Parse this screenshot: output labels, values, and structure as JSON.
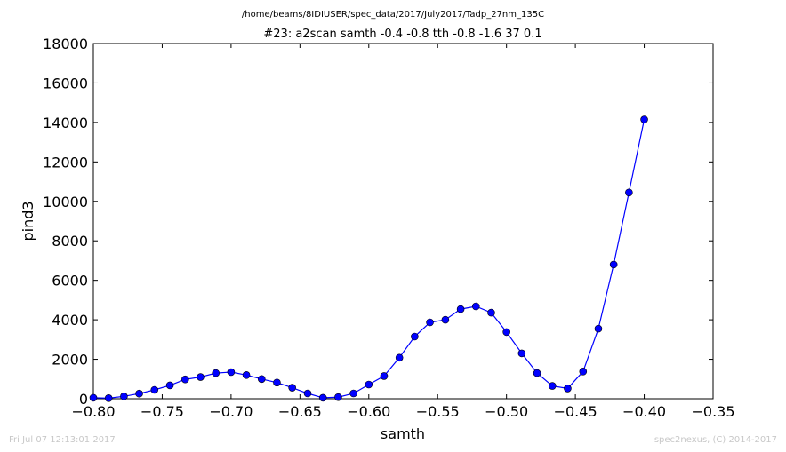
{
  "chart_data": {
    "type": "line",
    "suptitle": "/home/beams/8IDIUSER/spec_data/2017/July2017/Tadp_27nm_135C",
    "title": "#23: a2scan  samth -0.4 -0.8  tth -0.8 -1.6  37 0.1",
    "xlabel": "samth",
    "ylabel": "pind3",
    "xlim": [
      -0.8,
      -0.35
    ],
    "ylim": [
      0,
      18000
    ],
    "xticks": [
      -0.8,
      -0.75,
      -0.7,
      -0.65,
      -0.6,
      -0.55,
      -0.5,
      -0.45,
      -0.4,
      -0.35
    ],
    "xtick_labels": [
      "−0.80",
      "−0.75",
      "−0.70",
      "−0.65",
      "−0.60",
      "−0.55",
      "−0.50",
      "−0.45",
      "−0.40",
      "−0.35"
    ],
    "yticks": [
      0,
      2000,
      4000,
      6000,
      8000,
      10000,
      12000,
      14000,
      16000,
      18000
    ],
    "ytick_labels": [
      "0",
      "2000",
      "4000",
      "6000",
      "8000",
      "10000",
      "12000",
      "14000",
      "16000",
      "18000"
    ],
    "grid": false,
    "series": [
      {
        "color": "#0000ff",
        "marker": "circle",
        "x": [
          -0.8,
          -0.7889,
          -0.7778,
          -0.7667,
          -0.7556,
          -0.7444,
          -0.7333,
          -0.7222,
          -0.7111,
          -0.7,
          -0.6889,
          -0.6778,
          -0.6667,
          -0.6556,
          -0.6444,
          -0.6333,
          -0.6222,
          -0.6111,
          -0.6,
          -0.5889,
          -0.5778,
          -0.5667,
          -0.5556,
          -0.5444,
          -0.5333,
          -0.5222,
          -0.5111,
          -0.5,
          -0.4889,
          -0.4778,
          -0.4667,
          -0.4556,
          -0.4444,
          -0.4333,
          -0.4222,
          -0.4111,
          -0.4
        ],
        "y": [
          50,
          30,
          120,
          260,
          450,
          680,
          980,
          1100,
          1300,
          1350,
          1200,
          1000,
          820,
          560,
          270,
          50,
          80,
          270,
          720,
          1150,
          2080,
          3150,
          3870,
          4000,
          4540,
          4680,
          4360,
          3380,
          2300,
          1300,
          650,
          520,
          1380,
          3550,
          6800,
          10450,
          14150
        ]
      }
    ]
  },
  "footer": {
    "left": "Fri Jul 07 12:13:01 2017",
    "right": "spec2nexus, (C) 2014-2017"
  }
}
